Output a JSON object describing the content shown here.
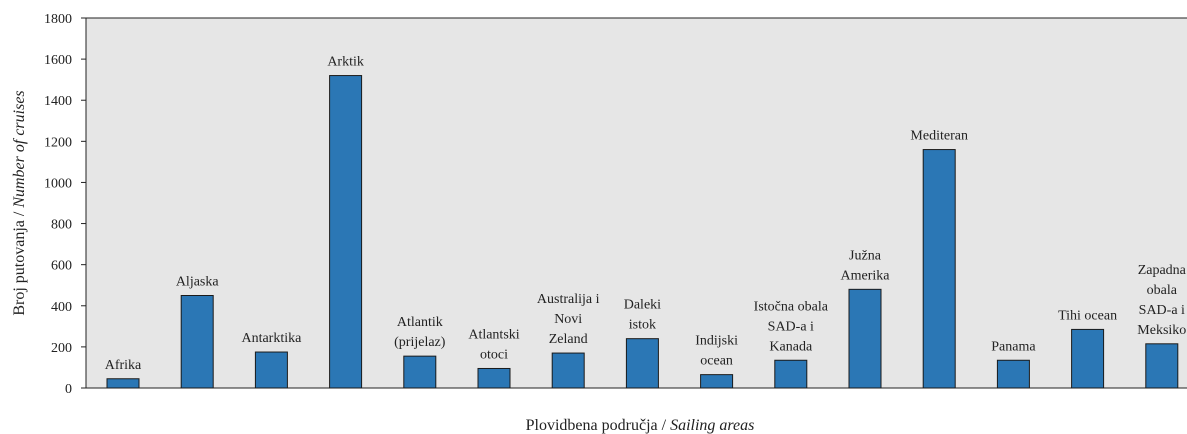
{
  "chart_data": {
    "type": "bar",
    "ylabel": {
      "text": "Broj putovanja /",
      "italic": "Number of cruises"
    },
    "xlabel": {
      "text": "Plovidbena područja /",
      "italic": "Sailing areas"
    },
    "categories": [
      [
        "Afrika"
      ],
      [
        "Aljaska"
      ],
      [
        "Antarktika"
      ],
      [
        "Arktik"
      ],
      [
        "Atlantik",
        "(prijelaz)"
      ],
      [
        "Atlantski",
        "otoci"
      ],
      [
        "Australija i",
        "Novi",
        "Zeland"
      ],
      [
        "Daleki",
        "istok"
      ],
      [
        "Indijski",
        "ocean"
      ],
      [
        "Istočna obala",
        "SAD-a i",
        "Kanada"
      ],
      [
        "Južna",
        "Amerika"
      ],
      [
        "Mediteran"
      ],
      [
        "Panama"
      ],
      [
        "Tihi ocean"
      ],
      [
        "Zapadna",
        "obala",
        "SAD-a i",
        "Meksiko"
      ]
    ],
    "values": [
      45,
      450,
      175,
      1520,
      155,
      95,
      170,
      240,
      65,
      135,
      480,
      1160,
      135,
      285,
      215
    ],
    "color": "#2b77b5",
    "ylim": [
      0,
      1800
    ],
    "yticks": [
      0,
      200,
      400,
      600,
      800,
      1000,
      1200,
      1400,
      1600,
      1800
    ]
  }
}
